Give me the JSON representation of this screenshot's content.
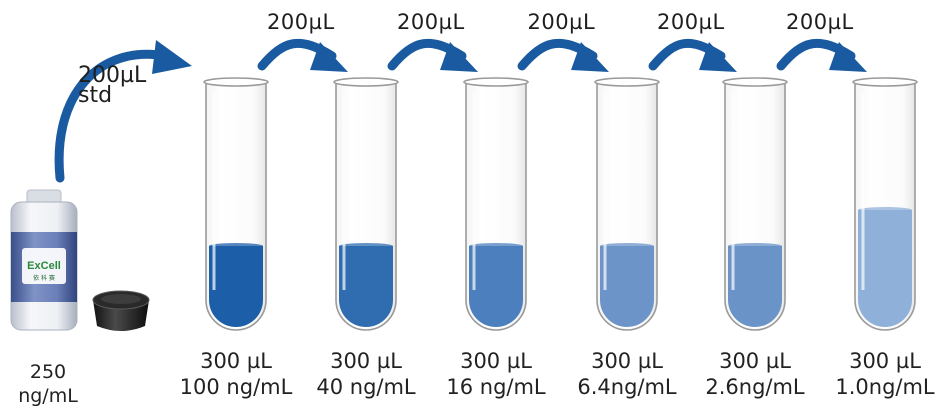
{
  "stock": {
    "concentration_line1": "250",
    "concentration_line2": "ng/mL",
    "bottle_brand": "ExCell",
    "bottle_brand_cn": "依 科 赛",
    "transfer_label": "200µL\nstd"
  },
  "transfers": [
    {
      "volume": "200µL"
    },
    {
      "volume": "200µL"
    },
    {
      "volume": "200µL"
    },
    {
      "volume": "200µL"
    },
    {
      "volume": "200µL"
    }
  ],
  "tubes": [
    {
      "volume": "300 µL",
      "concentration": "100 ng/mL",
      "liquid_color": "#1c5fa8",
      "fill_level": 0.35
    },
    {
      "volume": "300 µL",
      "concentration": "40 ng/mL",
      "liquid_color": "#2f6db0",
      "fill_level": 0.35
    },
    {
      "volume": "300 µL",
      "concentration": "16 ng/mL",
      "liquid_color": "#4b7fbd",
      "fill_level": 0.35
    },
    {
      "volume": "300 µL",
      "concentration": "6.4ng/mL",
      "liquid_color": "#6c94c8",
      "fill_level": 0.35
    },
    {
      "volume": "300 µL",
      "concentration": "2.6ng/mL",
      "liquid_color": "#6a93c8",
      "fill_level": 0.35
    },
    {
      "volume": "300 µL",
      "concentration": "1.0ng/mL",
      "liquid_color": "#8fb0d8",
      "fill_level": 0.5
    }
  ],
  "colors": {
    "arrow": "#1a5aa0",
    "tube_outline": "#9a9a9a"
  },
  "icons": {
    "bottle": "reagent-bottle-icon",
    "cap": "bottle-cap-icon",
    "arrow": "curved-arrow-icon"
  }
}
